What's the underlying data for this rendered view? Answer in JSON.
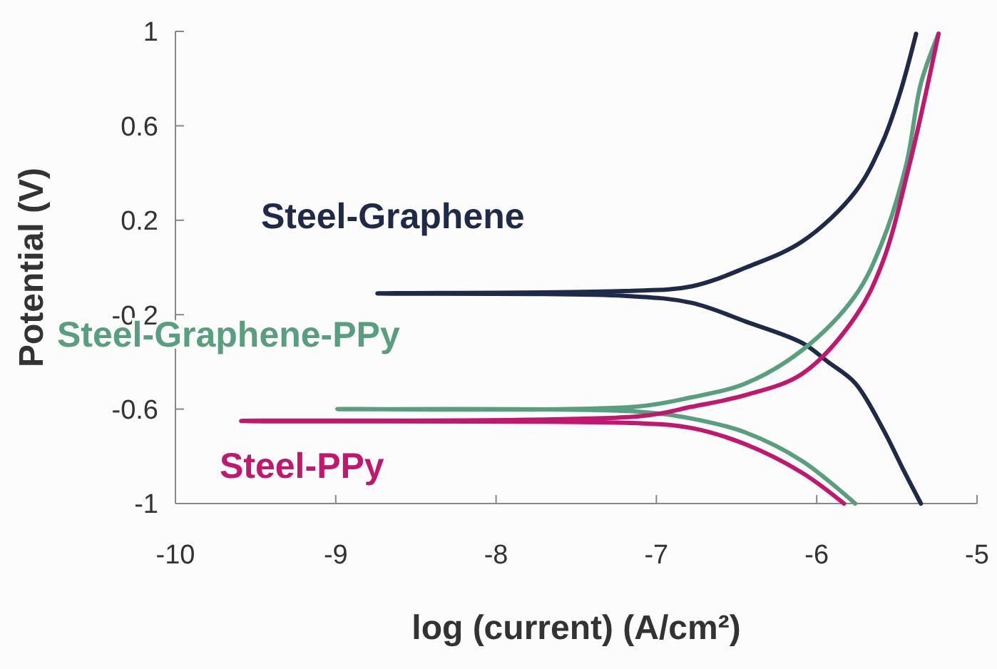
{
  "chart_data": {
    "type": "line",
    "xlabel": "log (current) (A/cm²)",
    "ylabel": "Potential (V)",
    "xlim": [
      -10,
      -5
    ],
    "xticks": [
      -10,
      -9,
      -8,
      -7,
      -6,
      -5
    ],
    "ylim": [
      -1,
      1
    ],
    "yticks": [
      -1,
      -0.6,
      -0.2,
      0.2,
      0.6,
      1
    ],
    "grid": false,
    "marker": "none",
    "line_style": "solid",
    "series": [
      {
        "name": "Steel-Graphene",
        "color": "#1f2a48",
        "x": [
          -5.35,
          -5.45,
          -5.59,
          -5.76,
          -5.93,
          -6.09,
          -6.44,
          -6.78,
          -7.2,
          -8.74,
          -7.2,
          -6.78,
          -6.44,
          -6.09,
          -5.76,
          -5.59,
          -5.48,
          -5.38
        ],
        "values": [
          -1,
          -0.87,
          -0.68,
          -0.49,
          -0.4,
          -0.32,
          -0.23,
          -0.15,
          -0.12,
          -0.11,
          -0.1,
          -0.08,
          0,
          0.11,
          0.32,
          0.53,
          0.74,
          0.99
        ]
      },
      {
        "name": "Steel-Graphene-PPy",
        "color": "#5a9e80",
        "x": [
          -5.76,
          -6.09,
          -6.44,
          -6.78,
          -7.13,
          -8.99,
          -7.13,
          -6.78,
          -6.44,
          -6.09,
          -5.76,
          -5.59,
          -5.44,
          -5.35,
          -5.24
        ],
        "values": [
          -1,
          -0.82,
          -0.7,
          -0.64,
          -0.61,
          -0.6,
          -0.59,
          -0.55,
          -0.49,
          -0.35,
          -0.12,
          0.11,
          0.44,
          0.78,
          0.99
        ]
      },
      {
        "name": "Steel-PPy",
        "color": "#c0186e",
        "x": [
          -5.83,
          -6.09,
          -6.44,
          -6.78,
          -7.1,
          -9.59,
          -7.1,
          -6.78,
          -6.44,
          -6.09,
          -5.76,
          -5.59,
          -5.42,
          -5.24
        ],
        "values": [
          -1,
          -0.87,
          -0.75,
          -0.68,
          -0.66,
          -0.65,
          -0.63,
          -0.59,
          -0.54,
          -0.45,
          -0.21,
          0.02,
          0.44,
          0.99
        ]
      }
    ]
  }
}
